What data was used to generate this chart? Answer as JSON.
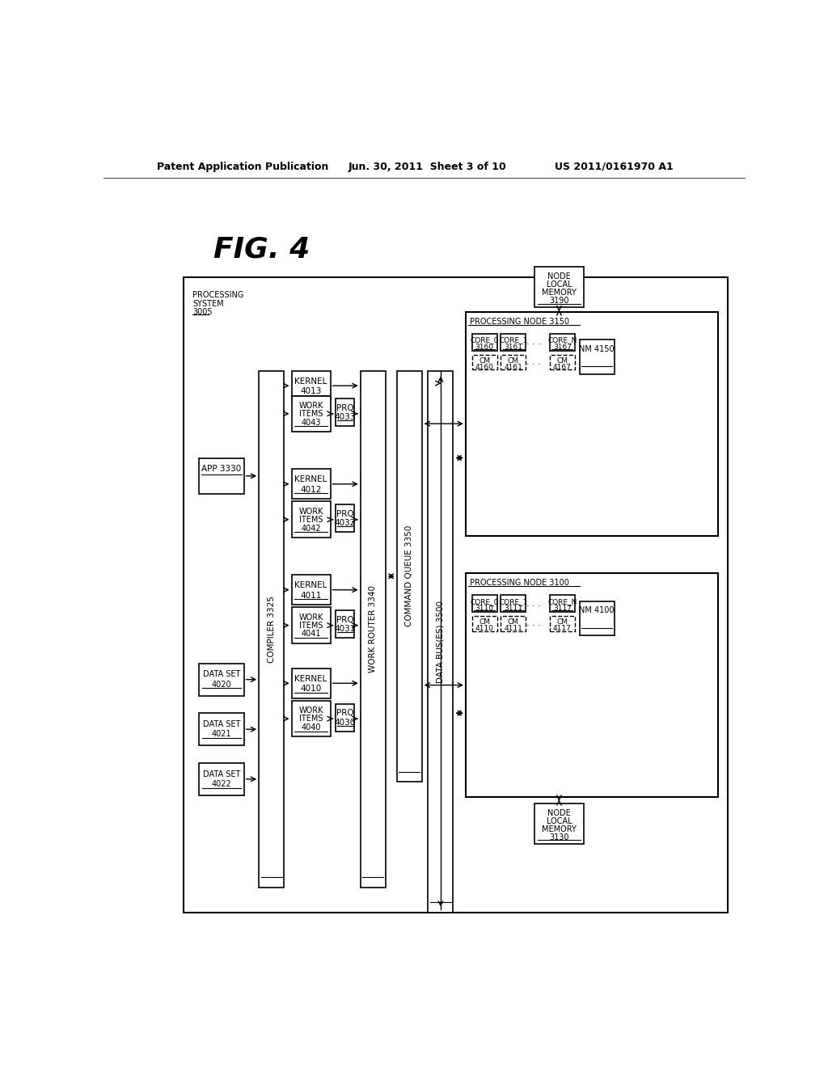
{
  "header_left": "Patent Application Publication",
  "header_center": "Jun. 30, 2011  Sheet 3 of 10",
  "header_right": "US 2011/0161970 A1",
  "fig_label": "FIG. 4",
  "bg_color": "#ffffff"
}
